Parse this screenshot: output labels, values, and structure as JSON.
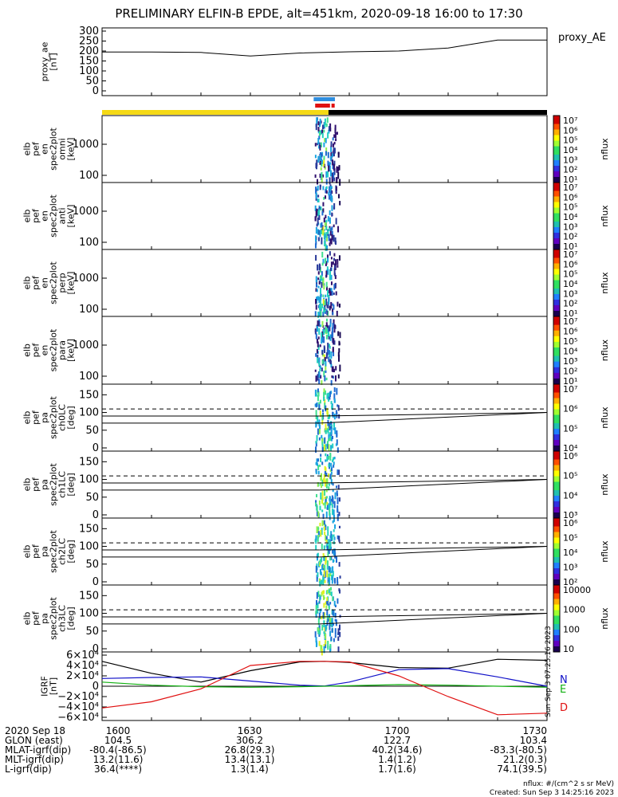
{
  "title": "PRELIMINARY ELFIN-B EPDE, alt=451km, 2020-09-18 16:00 to 17:30",
  "colors": {
    "state_yellow": "#f5d915",
    "state_black": "#000000",
    "marker_blue": "#2e8ee0",
    "marker_red": "#e01010",
    "igrf_n": "#1010c8",
    "igrf_e": "#10b010",
    "igrf_d": "#e01010"
  },
  "x_axis": {
    "tick_labels": [
      "1600",
      "1630",
      "1700",
      "1730"
    ]
  },
  "panels": [
    {
      "id": "proxy-ae",
      "ylabel": [
        "proxy_ae",
        "[nT]"
      ],
      "yticks": [
        "300",
        "250",
        "200",
        "150",
        "100",
        "50",
        "0"
      ],
      "legend": "proxy_AE"
    },
    {
      "id": "en-omni",
      "ylabel": [
        "elb",
        "pef",
        "en",
        "spec2plot",
        "omni",
        "[keV]"
      ],
      "yticks": [
        "1000",
        "100"
      ],
      "cbar_ticks": [
        "10⁷",
        "10⁶",
        "10⁵",
        "10⁴",
        "10³",
        "10²",
        "10¹"
      ],
      "cbar_label": "nflux"
    },
    {
      "id": "en-anti",
      "ylabel": [
        "elb",
        "pef",
        "en",
        "spec2plot",
        "anti",
        "[keV]"
      ],
      "yticks": [
        "1000",
        "100"
      ],
      "cbar_ticks": [
        "10⁷",
        "10⁶",
        "10⁵",
        "10⁴",
        "10³",
        "10²",
        "10¹"
      ],
      "cbar_label": "nflux"
    },
    {
      "id": "en-perp",
      "ylabel": [
        "elb",
        "pef",
        "en",
        "spec2plot",
        "perp",
        "[keV]"
      ],
      "yticks": [
        "1000",
        "100"
      ],
      "cbar_ticks": [
        "10⁷",
        "10⁶",
        "10⁵",
        "10⁴",
        "10³",
        "10²",
        "10¹"
      ],
      "cbar_label": "nflux"
    },
    {
      "id": "en-para",
      "ylabel": [
        "elb",
        "pef",
        "en",
        "spec2plot",
        "para",
        "[keV]"
      ],
      "yticks": [
        "1000",
        "100"
      ],
      "cbar_ticks": [
        "10⁷",
        "10⁶",
        "10⁵",
        "10⁴",
        "10³",
        "10²",
        "10¹"
      ],
      "cbar_label": "nflux"
    },
    {
      "id": "pa-ch0",
      "ylabel": [
        "elb",
        "pef",
        "pa",
        "spec2plot",
        "ch0LC",
        "[deg]"
      ],
      "yticks": [
        "150",
        "100",
        "50",
        "0"
      ],
      "cbar_ticks": [
        "10⁷",
        "10⁶",
        "10⁵",
        "10⁴"
      ],
      "cbar_label": "nflux"
    },
    {
      "id": "pa-ch1",
      "ylabel": [
        "elb",
        "pef",
        "pa",
        "spec2plot",
        "ch1LC",
        "[deg]"
      ],
      "yticks": [
        "150",
        "100",
        "50",
        "0"
      ],
      "cbar_ticks": [
        "10⁶",
        "10⁵",
        "10⁴",
        "10³"
      ],
      "cbar_label": "nflux"
    },
    {
      "id": "pa-ch2",
      "ylabel": [
        "elb",
        "pef",
        "pa",
        "spec2plot",
        "ch2LC",
        "[deg]"
      ],
      "yticks": [
        "150",
        "100",
        "50",
        "0"
      ],
      "cbar_ticks": [
        "10⁶",
        "10⁵",
        "10⁴",
        "10³",
        "10²"
      ],
      "cbar_label": "nflux"
    },
    {
      "id": "pa-ch3",
      "ylabel": [
        "elb",
        "pef",
        "pa",
        "spec2plot",
        "ch3LC",
        "[deg]"
      ],
      "yticks": [
        "150",
        "100",
        "50",
        "0"
      ],
      "cbar_ticks": [
        "10000",
        "1000",
        "100",
        "10"
      ],
      "cbar_label": "nflux"
    },
    {
      "id": "igrf",
      "ylabel": [
        "IGRF",
        "[nT]"
      ],
      "yticks": [
        "6×10⁴",
        "4×10⁴",
        "2×10⁴",
        "0",
        "−2×10⁴",
        "−4×10⁴",
        "−6×10⁴"
      ],
      "legend": [
        "N",
        "E",
        "D"
      ]
    }
  ],
  "ephemeris": [
    {
      "label": "2020 Sep 18",
      "values": [
        "1600",
        "1630",
        "1700",
        "1730"
      ]
    },
    {
      "label": "GLON (east)",
      "values": [
        "104.5",
        "306.2",
        "122.7",
        "103.4"
      ]
    },
    {
      "label": "MLAT-igrf(dip)",
      "values": [
        "-80.4(-86.5)",
        "26.8(29.3)",
        "40.2(34.6)",
        "-83.3(-80.5)"
      ]
    },
    {
      "label": "MLT-igrf(dip)",
      "values": [
        "13.2(11.6)",
        "13.4(13.1)",
        "1.4(1.2)",
        "21.2(0.3)"
      ]
    },
    {
      "label": "L-igrf(dip)",
      "values": [
        "36.4(****)",
        "1.3(1.4)",
        "1.7(1.6)",
        "74.1(39.5)"
      ]
    }
  ],
  "footer": {
    "units": "nflux: #/(cm^2 s sr MeV)",
    "created": "Created: Sun Sep  3 14:25:16 2023",
    "side_stamp": "Sun Sep  3 07:25:16 2023"
  },
  "chart_data": {
    "type": "line",
    "time_range": [
      "2020-09-18 16:00",
      "2020-09-18 17:30"
    ],
    "x_minutes_after_1600": [
      0,
      10,
      20,
      30,
      40,
      50,
      60,
      70,
      80,
      90
    ],
    "series": [
      {
        "name": "proxy_AE",
        "values": [
          195,
          195,
          193,
          175,
          190,
          196,
          200,
          215,
          255,
          255
        ],
        "ylim": [
          0,
          300
        ]
      }
    ],
    "igrf": {
      "ylim": [
        -60000,
        60000
      ],
      "x": [
        0,
        10,
        20,
        30,
        40,
        45,
        50,
        60,
        70,
        80,
        90
      ],
      "series": [
        {
          "name": "N",
          "values": [
            15000,
            17000,
            18000,
            10000,
            2000,
            500,
            8000,
            32000,
            34000,
            18000,
            0
          ]
        },
        {
          "name": "E",
          "values": [
            8000,
            2000,
            -1000,
            -2000,
            -1000,
            0,
            1000,
            3000,
            2000,
            0,
            -2000
          ]
        },
        {
          "name": "D",
          "values": [
            -42000,
            -30000,
            -5000,
            40000,
            48000,
            48000,
            47000,
            20000,
            -20000,
            -55000,
            -52000
          ]
        }
      ],
      "envelope": {
        "values": [
          48000,
          25000,
          8000,
          30000,
          47000,
          48000,
          46000,
          36000,
          35000,
          52000,
          50000
        ]
      }
    },
    "lc_lines_deg": {
      "solid": [
        70,
        90
      ],
      "dashed": 110
    },
    "burst_window_minutes": [
      43,
      48
    ]
  }
}
